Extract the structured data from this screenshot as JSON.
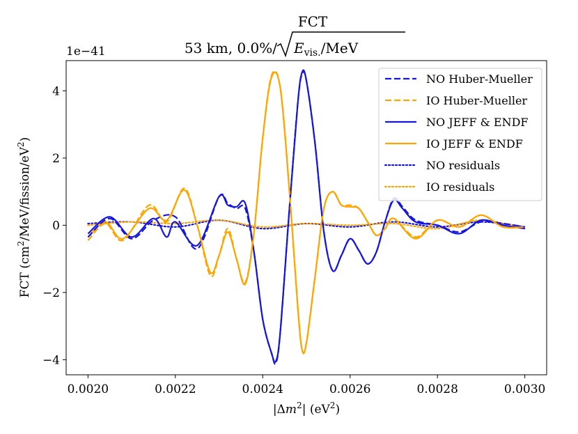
{
  "chart_data": {
    "type": "line",
    "title": "FCT",
    "subtitle_prefix": "53 km, 0.0%/",
    "subtitle_sqrt_var": "E",
    "subtitle_sqrt_sub": "vis.",
    "subtitle_sqrt_rest": "/MeV",
    "offset_text": "1e−41",
    "xlabel_pre": "|Δ",
    "xlabel_var": "m",
    "xlabel_sup": "2",
    "xlabel_post": "| (eV",
    "xlabel_sup2": "2",
    "xlabel_end": ")",
    "ylabel_pre": "FCT (cm",
    "ylabel_sup1": "2",
    "ylabel_mid": "/MeV/fission/eV",
    "ylabel_sup2": "2",
    "ylabel_end": ")",
    "xlim": [
      0.00195,
      0.00305
    ],
    "ylim": [
      -4.45,
      4.9
    ],
    "xticks": [
      0.002,
      0.0022,
      0.0024,
      0.0026,
      0.0028,
      0.003
    ],
    "xtick_labels": [
      "0.0020",
      "0.0022",
      "0.0024",
      "0.0026",
      "0.0028",
      "0.0030"
    ],
    "yticks": [
      -4,
      -2,
      0,
      2,
      4
    ],
    "ytick_labels": [
      "−4",
      "−2",
      "0",
      "2",
      "4"
    ],
    "legend_position": "top-right",
    "colors": {
      "NO": "#1515e0",
      "IO": "#ffa500"
    },
    "series": [
      {
        "name": "NO Huber-Mueller",
        "color": "#1515e0",
        "style": "dashed",
        "x": [
          0.002,
          0.00205,
          0.0021,
          0.00215,
          0.0022,
          0.00225,
          0.0023,
          0.00232,
          0.00234,
          0.00236,
          0.00238,
          0.0024,
          0.00242,
          0.00243,
          0.00244,
          0.00246,
          0.00248,
          0.00249,
          0.0025,
          0.00252,
          0.00254,
          0.00256,
          0.00258,
          0.0026,
          0.00262,
          0.00264,
          0.00266,
          0.00268,
          0.0027,
          0.00272,
          0.00275,
          0.0028,
          0.00285,
          0.0029,
          0.00295,
          0.003
        ],
        "y": [
          -0.35,
          0.2,
          -0.4,
          0.15,
          0.25,
          -0.7,
          0.85,
          0.65,
          0.5,
          0.5,
          -0.8,
          -2.8,
          -3.8,
          -4.1,
          -3.2,
          0.3,
          3.6,
          4.5,
          4.3,
          2.4,
          -0.2,
          -1.35,
          -0.9,
          -0.4,
          -0.75,
          -1.15,
          -0.8,
          0.1,
          0.8,
          0.55,
          0.15,
          0.0,
          -0.2,
          0.1,
          0.05,
          -0.05
        ]
      },
      {
        "name": "IO Huber-Mueller",
        "color": "#ffa500",
        "style": "dashed",
        "x": [
          0.002,
          0.00204,
          0.00208,
          0.00214,
          0.00218,
          0.00222,
          0.00225,
          0.00228,
          0.0023,
          0.00232,
          0.00234,
          0.00236,
          0.00238,
          0.0024,
          0.00242,
          0.00244,
          0.00246,
          0.00248,
          0.00249,
          0.0025,
          0.00252,
          0.00254,
          0.00256,
          0.00258,
          0.0026,
          0.00262,
          0.00264,
          0.00266,
          0.00268,
          0.0027,
          0.00275,
          0.0028,
          0.00285,
          0.0029,
          0.00295,
          0.003
        ],
        "y": [
          -0.45,
          0.05,
          -0.45,
          0.6,
          0.1,
          1.1,
          0.0,
          -1.5,
          -0.9,
          -0.1,
          -1.0,
          -1.7,
          -0.2,
          2.6,
          4.45,
          4.1,
          1.2,
          -2.4,
          -3.7,
          -3.5,
          -1.5,
          0.5,
          1.0,
          0.6,
          0.6,
          0.5,
          0.1,
          -0.3,
          -0.1,
          0.2,
          -0.35,
          0.15,
          -0.05,
          0.3,
          -0.05,
          -0.05
        ]
      },
      {
        "name": "NO JEFF & ENDF",
        "color": "#1515e0",
        "style": "solid",
        "x": [
          0.002,
          0.00205,
          0.0021,
          0.00215,
          0.00218,
          0.0022,
          0.00225,
          0.0023,
          0.00232,
          0.00234,
          0.00236,
          0.00238,
          0.0024,
          0.00242,
          0.00243,
          0.00244,
          0.00246,
          0.00248,
          0.00249,
          0.0025,
          0.00252,
          0.00254,
          0.00256,
          0.00258,
          0.0026,
          0.00262,
          0.00264,
          0.00266,
          0.00268,
          0.0027,
          0.00272,
          0.00275,
          0.0028,
          0.00285,
          0.0029,
          0.00295,
          0.003
        ],
        "y": [
          -0.25,
          0.25,
          -0.35,
          0.2,
          -0.35,
          0.1,
          -0.6,
          0.85,
          0.6,
          0.55,
          0.65,
          -0.8,
          -2.8,
          -3.8,
          -4.05,
          -3.2,
          0.3,
          3.6,
          4.55,
          4.3,
          2.4,
          -0.2,
          -1.35,
          -0.9,
          -0.4,
          -0.75,
          -1.15,
          -0.8,
          0.1,
          0.75,
          0.5,
          0.1,
          0.0,
          -0.25,
          0.15,
          0.0,
          -0.1
        ]
      },
      {
        "name": "IO JEFF & ENDF",
        "color": "#ffa500",
        "style": "solid",
        "x": [
          0.002,
          0.00204,
          0.00208,
          0.00214,
          0.00218,
          0.00222,
          0.00225,
          0.00228,
          0.0023,
          0.00232,
          0.00234,
          0.00236,
          0.00238,
          0.0024,
          0.00242,
          0.00244,
          0.00246,
          0.00248,
          0.00249,
          0.0025,
          0.00252,
          0.00254,
          0.00256,
          0.00258,
          0.0026,
          0.00262,
          0.00264,
          0.00266,
          0.00268,
          0.0027,
          0.00275,
          0.0028,
          0.00285,
          0.0029,
          0.00295,
          0.003
        ],
        "y": [
          -0.35,
          0.1,
          -0.4,
          0.5,
          0.15,
          1.05,
          0.0,
          -1.4,
          -0.9,
          -0.2,
          -1.0,
          -1.75,
          -0.2,
          2.6,
          4.4,
          4.1,
          1.2,
          -2.4,
          -3.7,
          -3.5,
          -1.5,
          0.5,
          1.0,
          0.6,
          0.55,
          0.5,
          0.1,
          -0.3,
          -0.1,
          0.2,
          -0.4,
          0.15,
          -0.05,
          0.3,
          -0.05,
          -0.05
        ]
      },
      {
        "name": "NO residuals",
        "color": "#1515e0",
        "style": "dotted",
        "x": [
          0.002,
          0.0021,
          0.0022,
          0.0023,
          0.0024,
          0.0025,
          0.0026,
          0.0027,
          0.0028,
          0.0029,
          0.003
        ],
        "y": [
          0.05,
          0.1,
          -0.05,
          0.15,
          -0.1,
          0.05,
          -0.05,
          0.1,
          -0.05,
          0.1,
          -0.05
        ]
      },
      {
        "name": "IO residuals",
        "color": "#ffa500",
        "style": "dotted",
        "x": [
          0.002,
          0.0021,
          0.0022,
          0.0023,
          0.0024,
          0.0025,
          0.0026,
          0.0027,
          0.0028,
          0.0029,
          0.003
        ],
        "y": [
          0.0,
          0.1,
          0.05,
          0.15,
          -0.05,
          0.05,
          0.0,
          0.05,
          -0.1,
          0.15,
          -0.1
        ]
      }
    ]
  }
}
